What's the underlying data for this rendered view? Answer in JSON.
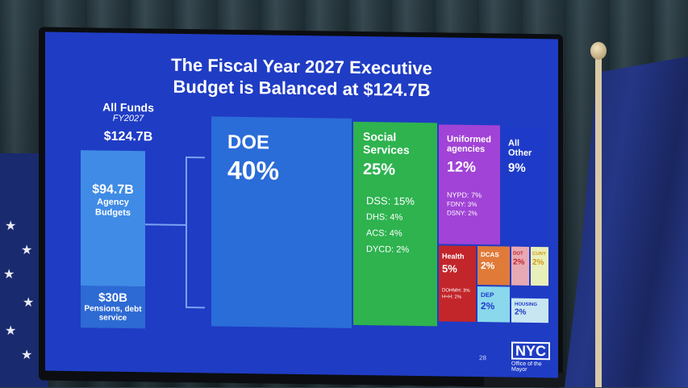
{
  "slide": {
    "title_line1": "The Fiscal Year 2027 Executive",
    "title_line2": "Budget is Balanced at $124.7B",
    "all_funds_label": "All Funds",
    "fiscal_year": "FY2027",
    "total": "$124.7B",
    "agency_budgets_value": "$94.7B",
    "agency_budgets_label": "Agency Budgets",
    "pensions_value": "$30B",
    "pensions_label": "Pensions, debt service",
    "page_number": "28",
    "logo_text": "NYC",
    "logo_subtext": "Office of the Mayor",
    "tiles": [
      {
        "name": "DOE",
        "pct": "40%",
        "color": "#2a6cd8",
        "items": []
      },
      {
        "name": "Social Services",
        "pct": "25%",
        "color": "#2eb34f",
        "items": [
          "DSS: 15%",
          "DHS: 4%",
          "ACS: 4%",
          "DYCD: 2%"
        ]
      },
      {
        "name": "Uniformed agencies",
        "pct": "12%",
        "color": "#a143d6",
        "items": [
          "NYPD: 7%",
          "FDNY: 3%",
          "DSNY: 2%"
        ]
      },
      {
        "name": "All Other",
        "pct": "9%",
        "color": "#1d3bc8",
        "items": []
      },
      {
        "name": "Health",
        "pct": "5%",
        "color": "#c2262b",
        "items": [
          "DOHMH: 3%",
          "H+H: 2%"
        ]
      },
      {
        "name": "DCAS",
        "pct": "2%",
        "color": "#e07a38",
        "items": []
      },
      {
        "name": "DOT",
        "pct": "2%",
        "color": "#e7a9b3",
        "items": []
      },
      {
        "name": "CUNY",
        "pct": "2%",
        "color": "#e9efb8",
        "items": []
      },
      {
        "name": "DEP",
        "pct": "2%",
        "color": "#8ad8ec",
        "items": []
      },
      {
        "name": "HOUSING",
        "pct": "2%",
        "color": "#c8e6f2",
        "items": []
      }
    ]
  }
}
